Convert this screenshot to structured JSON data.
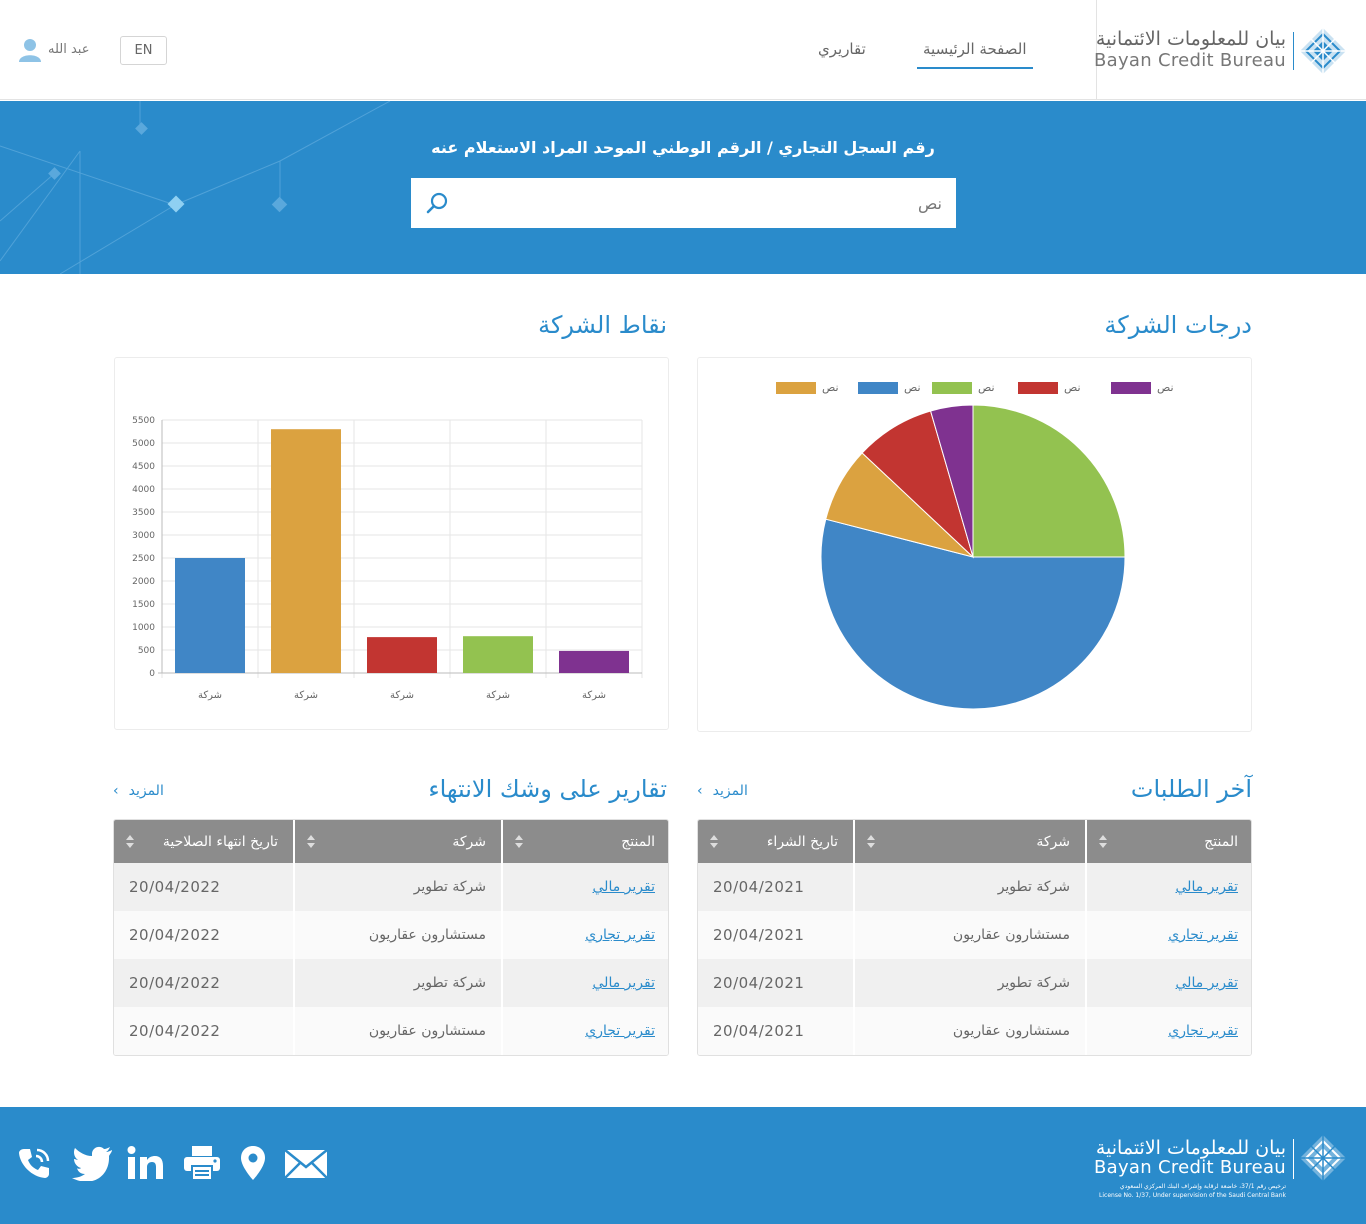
{
  "header": {
    "logo_ar": "بيان للمعلومات الائتمانية",
    "logo_en": "Bayan Credit Bureau",
    "nav": [
      {
        "label": "الصفحة الرئيسية",
        "active": true
      },
      {
        "label": "تقاريري",
        "active": false
      }
    ],
    "lang_button": "EN",
    "user_name": "عبد الله"
  },
  "search": {
    "title": "رقم السجل التجاري / الرقم الوطني الموحد المراد الاستعلام عنه",
    "placeholder": "نص"
  },
  "pie_section": {
    "title": "درجات الشركة",
    "chart_data": {
      "type": "pie",
      "legend": [
        {
          "label": "نص",
          "color": "#7f3290"
        },
        {
          "label": "نص",
          "color": "#c23531"
        },
        {
          "label": "نص",
          "color": "#93c250"
        },
        {
          "label": "نص",
          "color": "#4086c6"
        },
        {
          "label": "نص",
          "color": "#dba240"
        }
      ],
      "slices": [
        {
          "value": 25,
          "color": "#93c250"
        },
        {
          "value": 54,
          "color": "#4086c6"
        },
        {
          "value": 8,
          "color": "#dba240"
        },
        {
          "value": 8.5,
          "color": "#c23531"
        },
        {
          "value": 4.5,
          "color": "#7f3290"
        }
      ]
    }
  },
  "bar_section": {
    "title": "نقاط الشركة",
    "chart_data": {
      "type": "bar",
      "categories": [
        "شركة",
        "شركة",
        "شركة",
        "شركة",
        "شركة"
      ],
      "values": [
        2500,
        5300,
        780,
        800,
        480
      ],
      "colors": [
        "#4086c6",
        "#dba240",
        "#c23531",
        "#93c250",
        "#7f3290"
      ],
      "ylim": [
        0,
        5500
      ],
      "yticks": [
        0,
        500,
        1000,
        1500,
        2000,
        2500,
        3000,
        3500,
        4000,
        4500,
        5000,
        5500
      ],
      "grid": true
    }
  },
  "latest_requests": {
    "title": "آخر الطلبات",
    "more": "المزيد",
    "columns": [
      "المنتج",
      "شركة",
      "تاريخ الشراء"
    ],
    "rows": [
      [
        "تقرير مالي",
        "شركة تطوير",
        "20/04/2021"
      ],
      [
        "تقرير تجاري",
        "مستشارون عقاريون",
        "20/04/2021"
      ],
      [
        "تقرير مالي",
        "شركة تطوير",
        "20/04/2021"
      ],
      [
        "تقرير تجاري",
        "مستشارون عقاريون",
        "20/04/2021"
      ]
    ]
  },
  "expiring_reports": {
    "title": "تقارير على وشك الانتهاء",
    "more": "المزيد",
    "columns": [
      "المنتج",
      "شركة",
      "تاريخ انتهاء الصلاحية"
    ],
    "rows": [
      [
        "تقرير مالي",
        "شركة تطوير",
        "20/04/2022"
      ],
      [
        "تقرير تجاري",
        "مستشارون عقاريون",
        "20/04/2022"
      ],
      [
        "تقرير مالي",
        "شركة تطوير",
        "20/04/2022"
      ],
      [
        "تقرير تجاري",
        "مستشارون عقاريون",
        "20/04/2022"
      ]
    ]
  },
  "footer": {
    "logo_ar": "بيان للمعلومات الائتمانية",
    "logo_en": "Bayan Credit Bureau",
    "license_ar": "ترخيص رقم 37/1، خاضعة لرقابة وإشراف البنك المركزي السعودي",
    "license_en": "License No. 1/37, Under supervision of the Saudi Central Bank",
    "icons": [
      "phone-icon",
      "twitter-icon",
      "linkedin-icon",
      "print-icon",
      "location-icon",
      "mail-icon"
    ]
  }
}
